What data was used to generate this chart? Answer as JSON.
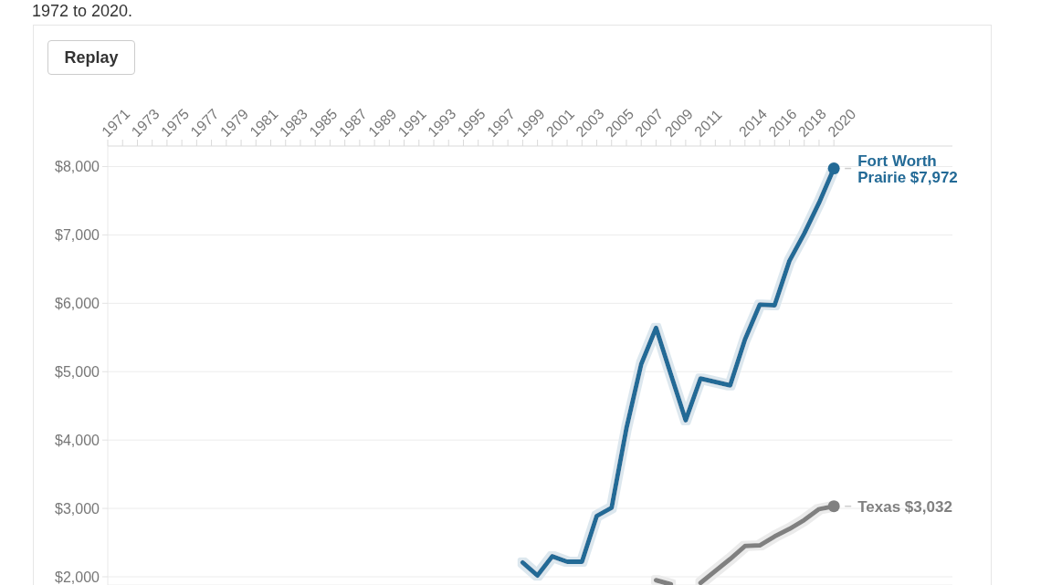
{
  "chart_data": {
    "type": "line",
    "subtitle": "1972 to 2020.",
    "annotations": [
      "Replay"
    ],
    "x": [
      1999,
      2000,
      2001,
      2002,
      2003,
      2004,
      2005,
      2006,
      2007,
      2008,
      2009,
      2010,
      2011,
      2013,
      2014,
      2015,
      2016,
      2017,
      2018,
      2019,
      2020
    ],
    "xlim": [
      1971,
      2028
    ],
    "xticks": [
      1971,
      {
        "value": 1972,
        "label": null
      },
      1973,
      {
        "value": 1974,
        "label": null
      },
      1975,
      {
        "value": 1976,
        "label": null
      },
      1977,
      {
        "value": 1978,
        "label": null
      },
      1979,
      {
        "value": 1980,
        "label": null
      },
      1981,
      {
        "value": 1982,
        "label": null
      },
      1983,
      {
        "value": 1984,
        "label": null
      },
      1985,
      {
        "value": 1986,
        "label": null
      },
      1987,
      {
        "value": 1988,
        "label": null
      },
      1989,
      {
        "value": 1990,
        "label": null
      },
      1991,
      {
        "value": 1992,
        "label": null
      },
      1993,
      {
        "value": 1994,
        "label": null
      },
      1995,
      {
        "value": 1996,
        "label": null
      },
      1997,
      {
        "value": 1998,
        "label": null
      },
      1999,
      {
        "value": 2000,
        "label": null
      },
      2001,
      {
        "value": 2002,
        "label": null
      },
      2003,
      {
        "value": 2004,
        "label": null
      },
      2005,
      {
        "value": 2006,
        "label": null
      },
      2007,
      {
        "value": 2008,
        "label": null
      },
      2009,
      {
        "value": 2010,
        "label": null
      },
      2011,
      {
        "value": 2012,
        "label": null
      },
      {
        "value": 2013,
        "label": null
      },
      2014,
      {
        "value": 2015,
        "label": null
      },
      2016,
      {
        "value": 2017,
        "label": null
      },
      2018,
      {
        "value": 2019,
        "label": null
      },
      2020
    ],
    "ylim": [
      1880,
      8300
    ],
    "yticks": [
      {
        "value": 2000,
        "label": "$2,000"
      },
      {
        "value": 3000,
        "label": "$3,000"
      },
      {
        "value": 4000,
        "label": "$4,000"
      },
      {
        "value": 5000,
        "label": "$5,000"
      },
      {
        "value": 6000,
        "label": "$6,000"
      },
      {
        "value": 7000,
        "label": "$7,000"
      },
      {
        "value": 8000,
        "label": "$8,000"
      }
    ],
    "grid": "y",
    "line_style": "solid",
    "series": [
      {
        "name": "Fort Worth Prairie",
        "color": "#236a96",
        "values": [
          2210,
          2020,
          2300,
          2220,
          2220,
          2890,
          3010,
          4170,
          5110,
          5640,
          4960,
          4290,
          4900,
          4800,
          5470,
          5980,
          5970,
          6620,
          7020,
          7470,
          7972
        ],
        "value_labels": [
          null,
          null,
          null,
          null,
          null,
          null,
          null,
          null,
          null,
          null,
          null,
          null,
          null,
          null,
          null,
          null,
          null,
          null,
          null,
          null,
          "$7,972"
        ]
      },
      {
        "name": "Texas",
        "color": "#808080",
        "values": [
          null,
          null,
          null,
          null,
          null,
          null,
          null,
          null,
          null,
          1950,
          1890,
          null,
          1910,
          2260,
          2450,
          2460,
          2590,
          2700,
          2830,
          2990,
          3032
        ],
        "value_labels": [
          null,
          null,
          null,
          null,
          null,
          null,
          null,
          null,
          null,
          null,
          null,
          null,
          null,
          null,
          null,
          null,
          null,
          null,
          null,
          null,
          "$3,032"
        ]
      }
    ]
  }
}
